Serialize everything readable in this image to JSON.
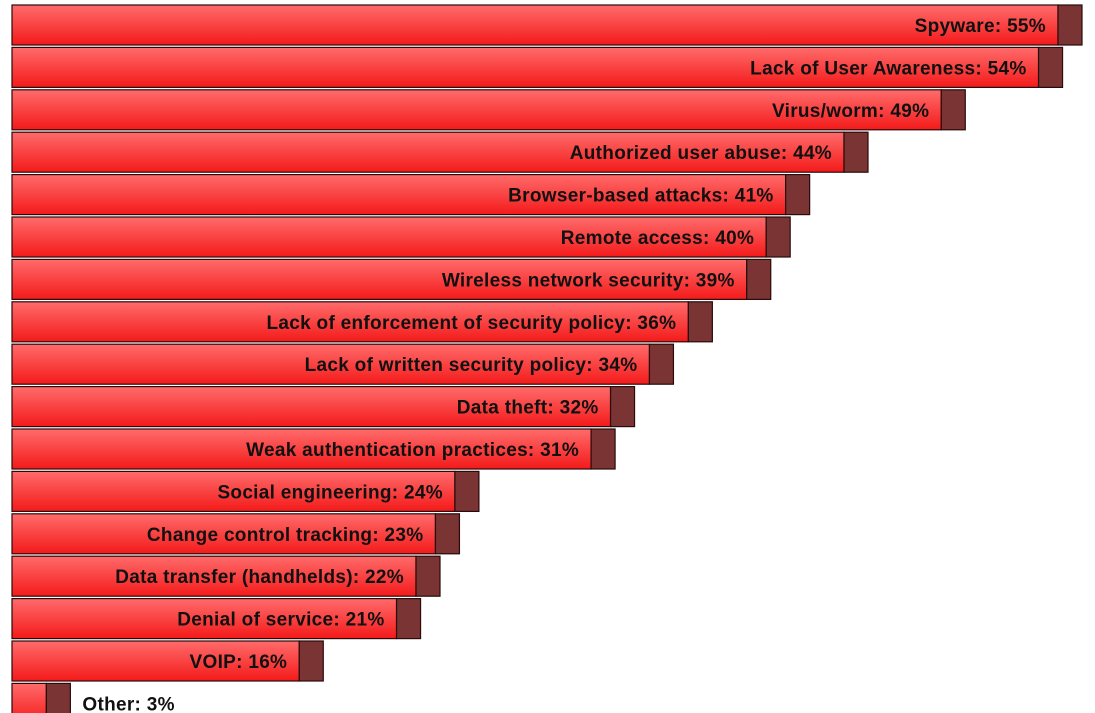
{
  "chart_data": {
    "type": "bar",
    "orientation": "horizontal",
    "title": "",
    "xlabel": "",
    "ylabel": "",
    "xlim": [
      0,
      55
    ],
    "grid": false,
    "legend": "none",
    "categories": [
      "Spyware",
      "Lack of User Awareness",
      "Virus/worm",
      "Authorized user abuse",
      "Browser-based attacks",
      "Remote access",
      "Wireless network security",
      "Lack of enforcement of security policy",
      "Lack of written security policy",
      "Data theft",
      "Weak authentication practices",
      "Social engineering",
      "Change control tracking",
      "Data transfer (handhelds)",
      "Denial of service",
      "VOIP",
      "Other"
    ],
    "values": [
      55,
      54,
      49,
      44,
      41,
      40,
      39,
      36,
      34,
      32,
      31,
      24,
      23,
      22,
      21,
      16,
      3
    ],
    "data_labels": [
      "Spyware: 55%",
      "Lack of User Awareness: 54%",
      "Virus/worm: 49%",
      "Authorized user abuse: 44%",
      "Browser-based attacks: 41%",
      "Remote access: 40%",
      "Wireless network security: 39%",
      "Lack of enforcement of security policy: 36%",
      "Lack of written security policy: 34%",
      "Data theft: 32%",
      "Weak authentication practices: 31%",
      "Social engineering: 24%",
      "Change control tracking: 23%",
      "Data transfer (handhelds): 22%",
      "Denial of service: 21%",
      "VOIP: 16%",
      "Other: 3%"
    ],
    "colors": {
      "bar_fill_top": "#ff6b6b",
      "bar_fill_bottom": "#f41a1a",
      "bar_end_cap": "#7a3434",
      "bar_outline": "#2a0a0a",
      "label_text": "#111111"
    }
  }
}
